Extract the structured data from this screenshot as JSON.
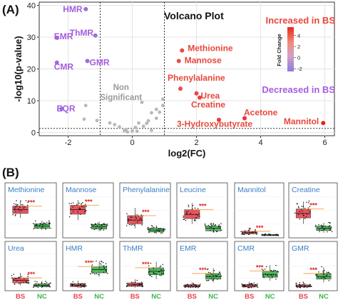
{
  "panel_labels": {
    "a": "(A)",
    "b": "(B)"
  },
  "chart_data": [
    {
      "type": "scatter",
      "title": "Volcano Plot",
      "xlabel": "log2(FC)",
      "ylabel": "-log10(p-value)",
      "xlim": [
        -2.9,
        6.3
      ],
      "ylim": [
        -1,
        41
      ],
      "xticks": [
        -2,
        0,
        2,
        4,
        6
      ],
      "yticks": [
        0,
        10,
        20,
        30,
        40
      ],
      "grid": true,
      "thresholds": {
        "x": [
          -1,
          1
        ],
        "y": 1.3
      },
      "region_label": "Non\nSignificant",
      "increased_label": "Increased in BS",
      "decreased_label": "Decreased in BS",
      "colorbar": {
        "title": "Fold Change",
        "ticks": [
          -2,
          0,
          2,
          4
        ],
        "range": [
          -2.5,
          5.5
        ]
      },
      "colors": {
        "increased": "#e03b2a",
        "decreased": "#9b6fd6",
        "nonsig": "#b8b8b8",
        "up_text": "#e8473b",
        "down_text": "#a45de0"
      },
      "labeled_points": [
        {
          "name": "HMR",
          "x": -1.45,
          "y": 38.8,
          "fc": -2.4
        },
        {
          "name": "ThMR",
          "x": -1.15,
          "y": 30.5,
          "fc": -2.1
        },
        {
          "name": "EMR",
          "x": -2.35,
          "y": 29.8,
          "fc": -2.5
        },
        {
          "name": "GMR",
          "x": -1.4,
          "y": 22.5,
          "fc": -2.3
        },
        {
          "name": "CMR",
          "x": -2.35,
          "y": 22.0,
          "fc": -2.5
        },
        {
          "name": "EQR",
          "x": -2.2,
          "y": 7.5,
          "fc": -2.1
        },
        {
          "name": "Methionine",
          "x": 1.55,
          "y": 25.8,
          "fc": 2.8
        },
        {
          "name": "Mannose",
          "x": 1.45,
          "y": 22.5,
          "fc": 2.6
        },
        {
          "name": "Phenylalanine",
          "x": 1.5,
          "y": 13.8,
          "fc": 2.7
        },
        {
          "name": "Urea",
          "x": 2.0,
          "y": 12.3,
          "fc": 3.1
        },
        {
          "name": "Creatine",
          "x": 2.1,
          "y": 11.0,
          "fc": 3.2
        },
        {
          "name": "3-Hydroxybutyrate",
          "x": 2.7,
          "y": 4.0,
          "fc": 3.6
        },
        {
          "name": "Acetone",
          "x": 3.5,
          "y": 4.5,
          "fc": 4.3
        },
        {
          "name": "Mannitol",
          "x": 5.95,
          "y": 3.0,
          "fc": 5.3
        }
      ],
      "nonsig_points": [
        [
          -1.45,
          8.5
        ],
        [
          -1.5,
          4.2
        ],
        [
          -1.1,
          3.8
        ],
        [
          -0.7,
          3.0
        ],
        [
          -0.55,
          2.5
        ],
        [
          -0.4,
          1.8
        ],
        [
          -0.25,
          0.6
        ],
        [
          -0.15,
          0.2
        ],
        [
          0.0,
          0.5
        ],
        [
          0.15,
          0.4
        ],
        [
          0.1,
          1.6
        ],
        [
          0.35,
          2.0
        ],
        [
          0.5,
          3.7
        ],
        [
          0.6,
          6.2
        ],
        [
          0.85,
          6.4
        ],
        [
          0.75,
          7.3
        ],
        [
          0.95,
          8.5
        ],
        [
          0.95,
          10.5
        ],
        [
          0.3,
          9.5
        ],
        [
          0.45,
          2.9
        ],
        [
          0.75,
          4.5
        ],
        [
          -0.2,
          1.0
        ],
        [
          0.6,
          0.7
        ],
        [
          0.2,
          3.0
        ]
      ]
    },
    {
      "type": "box",
      "groups": [
        "BS",
        "NC"
      ],
      "group_colors": {
        "BS": "#e8434f",
        "NC": "#3cb44b"
      },
      "significance": "***",
      "panels": [
        {
          "name": "Methionine",
          "bs": [
            0.48,
            0.6,
            0.7,
            0.8,
            0.95
          ],
          "nc": [
            0.15,
            0.2,
            0.26,
            0.32,
            0.4
          ]
        },
        {
          "name": "Mannose",
          "bs": [
            0.42,
            0.58,
            0.7,
            0.82,
            0.96
          ],
          "nc": [
            0.12,
            0.18,
            0.24,
            0.3,
            0.38
          ]
        },
        {
          "name": "Phenylalanine",
          "bs": [
            0.2,
            0.32,
            0.42,
            0.54,
            0.75
          ],
          "nc": [
            0.05,
            0.1,
            0.15,
            0.2,
            0.28
          ]
        },
        {
          "name": "Leucine",
          "bs": [
            0.32,
            0.46,
            0.57,
            0.7,
            0.88
          ],
          "nc": [
            0.08,
            0.13,
            0.2,
            0.26,
            0.35
          ]
        },
        {
          "name": "Mannitol",
          "bs": [
            0.02,
            0.05,
            0.08,
            0.12,
            0.22
          ],
          "nc": [
            0.0,
            0.01,
            0.02,
            0.03,
            0.05
          ]
        },
        {
          "name": "Creatine",
          "bs": [
            0.32,
            0.48,
            0.6,
            0.72,
            0.92
          ],
          "nc": [
            0.08,
            0.14,
            0.2,
            0.26,
            0.35
          ]
        },
        {
          "name": "Urea",
          "bs": [
            0.1,
            0.18,
            0.26,
            0.34,
            0.5
          ],
          "nc": [
            0.02,
            0.06,
            0.1,
            0.15,
            0.24
          ]
        },
        {
          "name": "HMR",
          "bs": [
            0.02,
            0.06,
            0.1,
            0.15,
            0.25
          ],
          "nc": [
            0.38,
            0.5,
            0.6,
            0.7,
            0.88
          ]
        },
        {
          "name": "ThMR",
          "bs": [
            0.03,
            0.07,
            0.12,
            0.18,
            0.3
          ],
          "nc": [
            0.3,
            0.44,
            0.55,
            0.66,
            0.85
          ]
        },
        {
          "name": "EMR",
          "bs": [
            0.02,
            0.05,
            0.08,
            0.12,
            0.2
          ],
          "nc": [
            0.2,
            0.3,
            0.38,
            0.48,
            0.65
          ]
        },
        {
          "name": "CMR",
          "bs": [
            0.02,
            0.05,
            0.09,
            0.13,
            0.22
          ],
          "nc": [
            0.25,
            0.36,
            0.45,
            0.56,
            0.75
          ]
        },
        {
          "name": "GMR",
          "bs": [
            0.02,
            0.05,
            0.08,
            0.12,
            0.2
          ],
          "nc": [
            0.2,
            0.3,
            0.38,
            0.48,
            0.68
          ]
        }
      ]
    }
  ]
}
